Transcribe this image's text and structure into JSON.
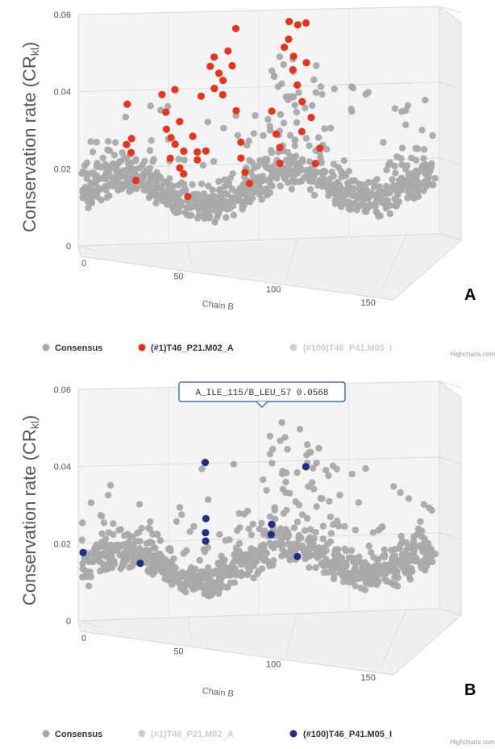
{
  "charts": [
    {
      "panel_label": "A",
      "credits": "Highcharts.com",
      "y_title": "Conservation rate (CR",
      "y_title_sub": "kl",
      "y_title_close": ")",
      "x_title": "Chain B",
      "legend": [
        {
          "label": "Consensus",
          "color": "#a9a9a9",
          "active": true
        },
        {
          "label": "(#1)T46_P21.M02_A",
          "color": "#e8341c",
          "active": true
        },
        {
          "label": "(#100)T46_P41.M05_I",
          "color": "#cfcfcf",
          "active": false
        }
      ]
    },
    {
      "panel_label": "B",
      "credits": "Highcharts.com",
      "y_title": "Conservation rate (CR",
      "y_title_sub": "kl",
      "y_title_close": ")",
      "x_title": "Chain B",
      "tooltip": "A_ILE_115/B_LEU_57 0.0568",
      "legend": [
        {
          "label": "Consensus",
          "color": "#a9a9a9",
          "active": true
        },
        {
          "label": "(#1)T46_P21.M02_A",
          "color": "#cfcfcf",
          "active": false
        },
        {
          "label": "(#100)T46_P41.M05_I",
          "color": "#1f2f8a",
          "active": true
        }
      ]
    }
  ],
  "chart_data": [
    {
      "type": "scatter",
      "panel": "A",
      "xlabel": "Chain B",
      "ylabel": "Conservation rate (CRkl)",
      "x_ticks": [
        "0",
        "50",
        "100",
        "150"
      ],
      "y_ticks": [
        "0",
        "0.02",
        "0.04",
        "0.06"
      ],
      "xlim": [
        0,
        165
      ],
      "ylim": [
        0,
        0.06
      ],
      "grid": true,
      "legend_position": "bottom",
      "series": [
        {
          "name": "Consensus",
          "color": "#a9a9a9",
          "note_count": 900
        },
        {
          "name": "(#1)T46_P21.M02_A",
          "color": "#e8341c",
          "points": [
            [
              22,
              0.037
            ],
            [
              22,
              0.026
            ],
            [
              24,
              0.028
            ],
            [
              24,
              0.024
            ],
            [
              26,
              0.017
            ],
            [
              38,
              0.039
            ],
            [
              40,
              0.034
            ],
            [
              40,
              0.03
            ],
            [
              42,
              0.028
            ],
            [
              42,
              0.022
            ],
            [
              44,
              0.026
            ],
            [
              44,
              0.04
            ],
            [
              46,
              0.032
            ],
            [
              46,
              0.02
            ],
            [
              48,
              0.024
            ],
            [
              48,
              0.018
            ],
            [
              50,
              0.012
            ],
            [
              52,
              0.028
            ],
            [
              54,
              0.024
            ],
            [
              54,
              0.022
            ],
            [
              56,
              0.038
            ],
            [
              58,
              0.024
            ],
            [
              60,
              0.046
            ],
            [
              62,
              0.048
            ],
            [
              62,
              0.04
            ],
            [
              64,
              0.044
            ],
            [
              66,
              0.042
            ],
            [
              66,
              0.038
            ],
            [
              68,
              0.05
            ],
            [
              70,
              0.046
            ],
            [
              72,
              0.055
            ],
            [
              72,
              0.034
            ],
            [
              74,
              0.026
            ],
            [
              74,
              0.022
            ],
            [
              76,
              0.018
            ],
            [
              78,
              0.015
            ],
            [
              88,
              0.034
            ],
            [
              90,
              0.028
            ],
            [
              92,
              0.024
            ],
            [
              92,
              0.02
            ],
            [
              94,
              0.05
            ],
            [
              96,
              0.057
            ],
            [
              96,
              0.052
            ],
            [
              98,
              0.048
            ],
            [
              98,
              0.044
            ],
            [
              100,
              0.056
            ],
            [
              100,
              0.04
            ],
            [
              102,
              0.036
            ],
            [
              102,
              0.028
            ],
            [
              104,
              0.056
            ],
            [
              104,
              0.046
            ],
            [
              106,
              0.032
            ],
            [
              108,
              0.02
            ],
            [
              110,
              0.024
            ]
          ]
        },
        {
          "name": "(#100)T46_P41.M05_I",
          "color": "#cfcfcf",
          "visible": false
        }
      ]
    },
    {
      "type": "scatter",
      "panel": "B",
      "xlabel": "Chain B",
      "ylabel": "Conservation rate (CRkl)",
      "x_ticks": [
        "0",
        "50",
        "100",
        "150"
      ],
      "y_ticks": [
        "0",
        "0.02",
        "0.04",
        "0.06"
      ],
      "xlim": [
        0,
        165
      ],
      "ylim": [
        0,
        0.06
      ],
      "grid": true,
      "legend_position": "bottom",
      "series": [
        {
          "name": "Consensus",
          "color": "#a9a9a9",
          "note_count": 900
        },
        {
          "name": "(#1)T46_P21.M02_A",
          "color": "#cfcfcf",
          "visible": false
        },
        {
          "name": "(#100)T46_P41.M05_I",
          "color": "#1f2f8a",
          "points": [
            [
              2,
              0.018
            ],
            [
              28,
              0.015
            ],
            [
              58,
              0.04
            ],
            [
              58,
              0.026
            ],
            [
              58,
              0.022
            ],
            [
              58,
              0.02
            ],
            [
              88,
              0.024
            ],
            [
              88,
              0.021
            ],
            [
              100,
              0.015
            ],
            [
              104,
              0.057
            ],
            [
              104,
              0.038
            ]
          ]
        }
      ],
      "highlighted_point": {
        "x": 104,
        "y": 0.0568,
        "label": "A_ILE_115/B_LEU_57 0.0568"
      }
    }
  ]
}
